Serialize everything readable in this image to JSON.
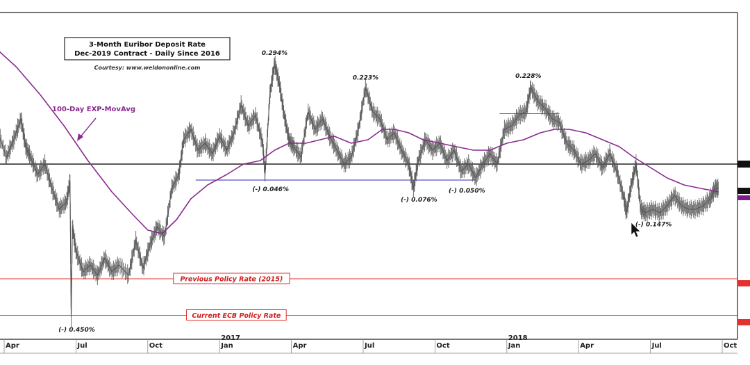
{
  "chart_data": {
    "type": "line",
    "title_lines": [
      "3-Month Euribor Deposit Rate",
      "Dec-2019 Contract - Daily Since 2016"
    ],
    "courtesy": "Courtesy: www.weldononline.com",
    "xlabel": "",
    "ylabel": "",
    "x_axis": {
      "ticks": [
        {
          "label": "Apr",
          "t": 0.0
        },
        {
          "label": "Jul",
          "t": 3.0
        },
        {
          "label": "Oct",
          "t": 6.0
        },
        {
          "label": "Jan",
          "t": 9.0
        },
        {
          "label": "Apr",
          "t": 12.0
        },
        {
          "label": "Jul",
          "t": 15.0
        },
        {
          "label": "Oct",
          "t": 18.0
        },
        {
          "label": "Jan",
          "t": 21.0
        },
        {
          "label": "Apr",
          "t": 24.0
        },
        {
          "label": "Jul",
          "t": 27.0
        },
        {
          "label": "Oct",
          "t": 30.0
        }
      ],
      "years": [
        {
          "label": "2017",
          "t": 9.0
        },
        {
          "label": "2018",
          "t": 21.0
        }
      ],
      "range_months": [
        0,
        30.6
      ]
    },
    "ylim": [
      -0.5,
      0.35
    ],
    "series": [
      {
        "color": "#555555",
        "points": [
          [
            -0.3,
            0.1
          ],
          [
            0.1,
            0.02
          ],
          [
            0.4,
            0.07
          ],
          [
            0.7,
            0.13
          ],
          [
            0.9,
            0.05
          ],
          [
            1.1,
            0.02
          ],
          [
            1.4,
            -0.03
          ],
          [
            1.7,
            0.0
          ],
          [
            2.0,
            -0.07
          ],
          [
            2.3,
            -0.13
          ],
          [
            2.6,
            -0.11
          ],
          [
            2.75,
            -0.05
          ],
          [
            2.8,
            -0.44
          ],
          [
            2.85,
            -0.18
          ],
          [
            3.0,
            -0.25
          ],
          [
            3.3,
            -0.31
          ],
          [
            3.6,
            -0.29
          ],
          [
            3.9,
            -0.32
          ],
          [
            4.2,
            -0.27
          ],
          [
            4.5,
            -0.31
          ],
          [
            4.8,
            -0.29
          ],
          [
            5.2,
            -0.32
          ],
          [
            5.5,
            -0.22
          ],
          [
            5.8,
            -0.3
          ],
          [
            6.1,
            -0.23
          ],
          [
            6.4,
            -0.18
          ],
          [
            6.7,
            -0.21
          ],
          [
            7.0,
            -0.07
          ],
          [
            7.3,
            -0.03
          ],
          [
            7.5,
            0.07
          ],
          [
            7.8,
            0.1
          ],
          [
            8.1,
            0.04
          ],
          [
            8.4,
            0.06
          ],
          [
            8.7,
            0.03
          ],
          [
            9.0,
            0.08
          ],
          [
            9.3,
            0.04
          ],
          [
            9.6,
            0.09
          ],
          [
            9.9,
            0.17
          ],
          [
            10.2,
            0.11
          ],
          [
            10.5,
            0.14
          ],
          [
            10.8,
            0.06
          ],
          [
            10.9,
            -0.03
          ],
          [
            11.1,
            0.2
          ],
          [
            11.3,
            0.29
          ],
          [
            11.5,
            0.23
          ],
          [
            11.7,
            0.14
          ],
          [
            11.9,
            0.07
          ],
          [
            12.1,
            0.05
          ],
          [
            12.4,
            0.02
          ],
          [
            12.7,
            0.15
          ],
          [
            13.0,
            0.1
          ],
          [
            13.3,
            0.13
          ],
          [
            13.6,
            0.08
          ],
          [
            13.9,
            0.04
          ],
          [
            14.2,
            0.0
          ],
          [
            14.5,
            0.02
          ],
          [
            14.8,
            0.1
          ],
          [
            15.1,
            0.22
          ],
          [
            15.4,
            0.15
          ],
          [
            15.7,
            0.13
          ],
          [
            16.0,
            0.07
          ],
          [
            16.3,
            0.09
          ],
          [
            16.6,
            0.04
          ],
          [
            16.9,
            0.0
          ],
          [
            17.1,
            -0.07
          ],
          [
            17.3,
            0.01
          ],
          [
            17.6,
            0.07
          ],
          [
            17.9,
            0.04
          ],
          [
            18.2,
            0.06
          ],
          [
            18.5,
            0.01
          ],
          [
            18.8,
            0.04
          ],
          [
            19.1,
            -0.02
          ],
          [
            19.4,
            0.0
          ],
          [
            19.7,
            -0.04
          ],
          [
            20.0,
            0.0
          ],
          [
            20.3,
            0.03
          ],
          [
            20.6,
            0.0
          ],
          [
            20.9,
            0.1
          ],
          [
            21.2,
            0.11
          ],
          [
            21.5,
            0.14
          ],
          [
            21.8,
            0.15
          ],
          [
            22.0,
            0.22
          ],
          [
            22.3,
            0.18
          ],
          [
            22.6,
            0.16
          ],
          [
            22.9,
            0.13
          ],
          [
            23.2,
            0.12
          ],
          [
            23.5,
            0.06
          ],
          [
            23.8,
            0.04
          ],
          [
            24.1,
            0.0
          ],
          [
            24.4,
            0.01
          ],
          [
            24.7,
            0.03
          ],
          [
            25.0,
            -0.01
          ],
          [
            25.3,
            0.03
          ],
          [
            25.6,
            -0.02
          ],
          [
            25.9,
            -0.1
          ],
          [
            26.0,
            -0.14
          ],
          [
            26.2,
            -0.06
          ],
          [
            26.4,
            0.0
          ],
          [
            26.6,
            -0.13
          ],
          [
            26.8,
            -0.14
          ],
          [
            27.1,
            -0.13
          ],
          [
            27.4,
            -0.14
          ],
          [
            27.7,
            -0.12
          ],
          [
            28.0,
            -0.09
          ],
          [
            28.3,
            -0.12
          ],
          [
            28.6,
            -0.13
          ],
          [
            28.9,
            -0.13
          ],
          [
            29.2,
            -0.12
          ],
          [
            29.5,
            -0.1
          ],
          [
            29.7,
            -0.07
          ],
          [
            29.85,
            -0.07
          ]
        ]
      },
      {
        "name": "100-Day EXP-MovAvg",
        "color": "#8a2a8f",
        "points": [
          [
            -0.3,
            0.33
          ],
          [
            0.5,
            0.28
          ],
          [
            1.5,
            0.2
          ],
          [
            2.5,
            0.11
          ],
          [
            3.5,
            0.01
          ],
          [
            4.5,
            -0.08
          ],
          [
            5.3,
            -0.14
          ],
          [
            6.0,
            -0.19
          ],
          [
            6.6,
            -0.2
          ],
          [
            7.2,
            -0.16
          ],
          [
            7.8,
            -0.1
          ],
          [
            8.5,
            -0.06
          ],
          [
            9.3,
            -0.03
          ],
          [
            10.0,
            0.0
          ],
          [
            10.7,
            0.01
          ],
          [
            11.3,
            0.04
          ],
          [
            11.9,
            0.06
          ],
          [
            12.6,
            0.06
          ],
          [
            13.2,
            0.07
          ],
          [
            13.8,
            0.08
          ],
          [
            14.5,
            0.06
          ],
          [
            15.2,
            0.07
          ],
          [
            15.8,
            0.1
          ],
          [
            16.3,
            0.1
          ],
          [
            16.9,
            0.09
          ],
          [
            17.5,
            0.07
          ],
          [
            18.2,
            0.06
          ],
          [
            18.9,
            0.05
          ],
          [
            19.6,
            0.04
          ],
          [
            20.3,
            0.04
          ],
          [
            21.0,
            0.06
          ],
          [
            21.7,
            0.07
          ],
          [
            22.4,
            0.09
          ],
          [
            23.0,
            0.1
          ],
          [
            23.6,
            0.1
          ],
          [
            24.3,
            0.09
          ],
          [
            25.0,
            0.07
          ],
          [
            25.7,
            0.05
          ],
          [
            26.3,
            0.02
          ],
          [
            27.0,
            -0.01
          ],
          [
            27.7,
            -0.04
          ],
          [
            28.4,
            -0.06
          ],
          [
            29.1,
            -0.07
          ],
          [
            29.85,
            -0.08
          ]
        ]
      }
    ],
    "title_box": {
      "line1": "3-Month Euribor Deposit Rate",
      "line2": "Dec-2019 Contract - Daily Since 2016"
    },
    "legend_label": "100-Day EXP-MovAvg",
    "annotations": {
      "peaks": [
        {
          "text": "0.294%",
          "t": 11.3,
          "v": 0.294
        },
        {
          "text": "0.223%",
          "t": 15.1,
          "v": 0.223
        },
        {
          "text": "0.228%",
          "t": 21.9,
          "v": 0.228
        }
      ],
      "troughs": [
        {
          "text": "(-) 0.046%",
          "t": 10.9,
          "v": -0.046
        },
        {
          "text": "(-) 0.076%",
          "t": 17.1,
          "v": -0.076
        },
        {
          "text": "(-) 0.050%",
          "t": 19.1,
          "v": -0.05
        },
        {
          "text": "(-) 0.147%",
          "t": 26.9,
          "v": -0.147
        },
        {
          "text": "(-) 0.450%",
          "t": 2.8,
          "v": -0.45
        }
      ],
      "support_line": {
        "t_start": 8.0,
        "t_end": 19.7,
        "v": -0.046
      },
      "resistance_line": {
        "t_start": 20.7,
        "t_end": 23.2,
        "v": 0.145
      },
      "reference_line": {
        "v": 0.0
      }
    },
    "policy_lines": [
      {
        "label": "Previous Policy Rate (2015)",
        "v": -0.33,
        "label_t": 9.5
      },
      {
        "label": "Current ECB Policy Rate",
        "v": -0.435,
        "label_t": 9.7
      }
    ],
    "colors": {
      "price": "#555555",
      "moving_average": "#8a2a8f",
      "policy": "#e53030",
      "support": "#2a2ab0",
      "resistance": "#e53030",
      "reference": "#222222",
      "arrow": "#8a2a8f"
    }
  }
}
